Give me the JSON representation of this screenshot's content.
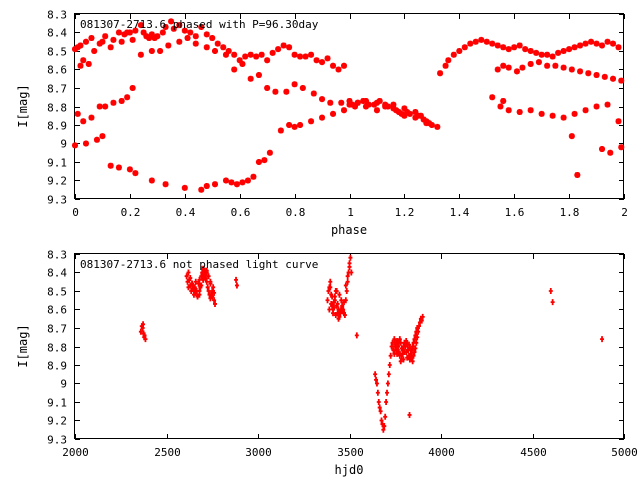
{
  "chart_data": [
    {
      "type": "scatter",
      "title": "081307-2713.6 phased with P=96.30day",
      "xlabel": "phase",
      "ylabel": "I[mag]",
      "xlim": [
        0,
        2
      ],
      "ylim": [
        8.3,
        9.3
      ],
      "y_inverted": true,
      "xticks": [
        "0",
        "0.2",
        "0.4",
        "0.6",
        "0.8",
        "1",
        "1.2",
        "1.4",
        "1.6",
        "1.8",
        "2"
      ],
      "yticks": [
        "8.3",
        "8.4",
        "8.5",
        "8.6",
        "8.7",
        "8.8",
        "8.9",
        "9",
        "9.1",
        "9.2",
        "9.3"
      ],
      "marker_color": "#ff0000",
      "grid": false,
      "series": [
        {
          "x": [
            0.0,
            0.01,
            0.02,
            0.02,
            0.03,
            0.04,
            0.05,
            0.06,
            0.07,
            0.09,
            0.1,
            0.11,
            0.13,
            0.14,
            0.16,
            0.17,
            0.18,
            0.19,
            0.2,
            0.21,
            0.22,
            0.24,
            0.25,
            0.26,
            0.27,
            0.28,
            0.29,
            0.3,
            0.32,
            0.33,
            0.35,
            0.36,
            0.38,
            0.4,
            0.42,
            0.44,
            0.46,
            0.48,
            0.5,
            0.52,
            0.54,
            0.56,
            0.58,
            0.6,
            0.62,
            0.64,
            0.66,
            0.68,
            0.7,
            0.72,
            0.74,
            0.76,
            0.78,
            0.8,
            0.82,
            0.84,
            0.86,
            0.88,
            0.9,
            0.92,
            0.94,
            0.96,
            0.98,
            0.01,
            0.03,
            0.06,
            0.09,
            0.11,
            0.14,
            0.17,
            0.19,
            0.21,
            0.24,
            0.28,
            0.31,
            0.34,
            0.38,
            0.41,
            0.44,
            0.48,
            0.51,
            0.55,
            0.58,
            0.61,
            0.64,
            0.67,
            0.7,
            0.73,
            0.77,
            0.8,
            0.83,
            0.87,
            0.9,
            0.93,
            0.97,
            1.0,
            1.03,
            1.06,
            1.1,
            1.13,
            1.16,
            1.2,
            1.24,
            1.28,
            0.0,
            0.04,
            0.08,
            0.1,
            0.13,
            0.16,
            0.2,
            0.22,
            0.28,
            0.33,
            0.4,
            0.46,
            0.48,
            0.51,
            0.55,
            0.57,
            0.59,
            0.61,
            0.63,
            0.65,
            0.67,
            0.69,
            0.71,
            0.75,
            0.78,
            0.8,
            0.82,
            0.86,
            0.9,
            0.94,
            0.98,
            1.0,
            1.01,
            1.02,
            1.03,
            1.05,
            1.06,
            1.07,
            1.09,
            1.1,
            1.11,
            1.13,
            1.14,
            1.16,
            1.17,
            1.18,
            1.19,
            1.2,
            1.21,
            1.22,
            1.24,
            1.25,
            1.26,
            1.27,
            1.28,
            1.29,
            1.3,
            1.32,
            1.33,
            1.35,
            1.36,
            1.38,
            1.4,
            1.42,
            1.44,
            1.46,
            1.48,
            1.5,
            1.52,
            1.54,
            1.56,
            1.58,
            1.6,
            1.62,
            1.64,
            1.66,
            1.68,
            1.7,
            1.72,
            1.74,
            1.76,
            1.78,
            1.8,
            1.82,
            1.84,
            1.86,
            1.88,
            1.9,
            1.92,
            1.94,
            1.96,
            1.98,
            1.54,
            1.56,
            1.58,
            1.61,
            1.63,
            1.66,
            1.69,
            1.72,
            1.75,
            1.78,
            1.81,
            1.84,
            1.87,
            1.9,
            1.93,
            1.96,
            1.99,
            1.55,
            1.58,
            1.62,
            1.66,
            1.7,
            1.74,
            1.78,
            1.82,
            1.86,
            1.9,
            1.94,
            1.98,
            1.81,
            1.83,
            1.92,
            1.95,
            1.99,
            1.52,
            1.56
          ],
          "y": [
            8.49,
            8.48,
            8.58,
            8.47,
            8.55,
            8.45,
            8.57,
            8.43,
            8.5,
            8.46,
            8.45,
            8.42,
            8.48,
            8.44,
            8.4,
            8.45,
            8.41,
            8.4,
            8.4,
            8.44,
            8.39,
            8.36,
            8.4,
            8.42,
            8.43,
            8.41,
            8.43,
            8.42,
            8.4,
            8.37,
            8.34,
            8.38,
            8.36,
            8.39,
            8.4,
            8.42,
            8.37,
            8.41,
            8.43,
            8.46,
            8.48,
            8.5,
            8.52,
            8.55,
            8.53,
            8.52,
            8.53,
            8.52,
            8.55,
            8.51,
            8.49,
            8.47,
            8.48,
            8.52,
            8.53,
            8.53,
            8.52,
            8.55,
            8.56,
            8.54,
            8.58,
            8.6,
            8.58,
            8.84,
            8.88,
            8.86,
            8.8,
            8.8,
            8.78,
            8.77,
            8.75,
            8.7,
            8.52,
            8.5,
            8.5,
            8.47,
            8.45,
            8.43,
            8.46,
            8.48,
            8.5,
            8.52,
            8.6,
            8.57,
            8.65,
            8.63,
            8.7,
            8.72,
            8.72,
            8.68,
            8.7,
            8.73,
            8.76,
            8.78,
            8.78,
            8.77,
            8.78,
            8.8,
            8.82,
            8.8,
            8.79,
            8.81,
            8.83,
            8.89,
            9.01,
            9.0,
            8.98,
            8.96,
            9.12,
            9.13,
            9.14,
            9.16,
            9.2,
            9.22,
            9.24,
            9.25,
            9.23,
            9.22,
            9.2,
            9.21,
            9.22,
            9.21,
            9.2,
            9.18,
            9.1,
            9.09,
            9.05,
            8.93,
            8.9,
            8.91,
            8.9,
            8.88,
            8.86,
            8.84,
            8.82,
            8.79,
            8.79,
            8.8,
            8.78,
            8.77,
            8.77,
            8.79,
            8.79,
            8.78,
            8.77,
            8.79,
            8.8,
            8.81,
            8.82,
            8.83,
            8.84,
            8.85,
            8.83,
            8.84,
            8.86,
            8.85,
            8.85,
            8.87,
            8.88,
            8.89,
            8.9,
            8.91,
            8.62,
            8.58,
            8.55,
            8.52,
            8.5,
            8.48,
            8.46,
            8.45,
            8.44,
            8.45,
            8.46,
            8.47,
            8.48,
            8.49,
            8.48,
            8.47,
            8.49,
            8.5,
            8.51,
            8.52,
            8.52,
            8.53,
            8.51,
            8.5,
            8.49,
            8.48,
            8.47,
            8.46,
            8.45,
            8.46,
            8.47,
            8.45,
            8.46,
            8.48,
            8.6,
            8.58,
            8.59,
            8.61,
            8.59,
            8.57,
            8.56,
            8.58,
            8.58,
            8.59,
            8.6,
            8.61,
            8.62,
            8.63,
            8.64,
            8.65,
            8.66,
            8.8,
            8.82,
            8.83,
            8.82,
            8.84,
            8.85,
            8.86,
            8.84,
            8.82,
            8.8,
            8.79,
            8.88,
            8.96,
            9.17,
            9.03,
            9.05,
            9.02,
            8.75,
            8.77
          ]
        }
      ]
    },
    {
      "type": "scatter",
      "title": "081307-2713.6 not phased light curve",
      "xlabel": "hjd0",
      "ylabel": "I[mag]",
      "xlim": [
        2000,
        5000
      ],
      "ylim": [
        8.3,
        9.3
      ],
      "y_inverted": true,
      "xticks": [
        "2000",
        "2500",
        "3000",
        "3500",
        "4000",
        "4500",
        "5000"
      ],
      "yticks": [
        "8.3",
        "8.4",
        "8.5",
        "8.6",
        "8.7",
        "8.8",
        "8.9",
        "9",
        "9.1",
        "9.2",
        "9.3"
      ],
      "marker_color": "#ff0000",
      "grid": false,
      "series": [
        {
          "x": [
            2360,
            2365,
            2370,
            2375,
            2380,
            2385,
            2372,
            2378,
            2610,
            2615,
            2620,
            2625,
            2630,
            2635,
            2640,
            2645,
            2650,
            2655,
            2660,
            2665,
            2670,
            2675,
            2680,
            2685,
            2690,
            2695,
            2700,
            2705,
            2710,
            2715,
            2720,
            2725,
            2730,
            2735,
            2740,
            2745,
            2750,
            2755,
            2620,
            2630,
            2640,
            2650,
            2660,
            2670,
            2680,
            2690,
            2700,
            2710,
            2720,
            2730,
            2740,
            2750,
            2760,
            2765,
            2640,
            2660,
            2680,
            2700,
            2720,
            2740,
            2760,
            2880,
            2885,
            3380,
            3385,
            3390,
            3395,
            3400,
            3405,
            3410,
            3415,
            3420,
            3425,
            3430,
            3435,
            3440,
            3445,
            3450,
            3455,
            3460,
            3465,
            3470,
            3475,
            3480,
            3485,
            3490,
            3495,
            3500,
            3505,
            3510,
            3390,
            3400,
            3410,
            3420,
            3430,
            3440,
            3450,
            3460,
            3470,
            3480,
            3490,
            3500,
            3395,
            3405,
            3415,
            3425,
            3435,
            3445,
            3455,
            3465,
            3540,
            3640,
            3645,
            3650,
            3655,
            3660,
            3665,
            3670,
            3675,
            3680,
            3685,
            3690,
            3695,
            3700,
            3705,
            3710,
            3715,
            3720,
            3725,
            3730,
            3735,
            3740,
            3745,
            3750,
            3755,
            3760,
            3765,
            3770,
            3775,
            3780,
            3785,
            3790,
            3795,
            3800,
            3805,
            3810,
            3815,
            3820,
            3825,
            3830,
            3835,
            3840,
            3845,
            3850,
            3855,
            3860,
            3865,
            3870,
            3875,
            3880,
            3885,
            3890,
            3895,
            3900,
            3745,
            3750,
            3755,
            3760,
            3765,
            3770,
            3775,
            3780,
            3785,
            3790,
            3795,
            3800,
            3805,
            3810,
            3815,
            3820,
            3825,
            3830,
            3835,
            3840,
            3845,
            3850,
            3855,
            3860,
            3865,
            3870,
            3828,
            4600,
            4610,
            4880
          ],
          "y": [
            8.72,
            8.69,
            8.7,
            8.73,
            8.74,
            8.76,
            8.68,
            8.75,
            8.42,
            8.45,
            8.48,
            8.44,
            8.47,
            8.5,
            8.46,
            8.49,
            8.52,
            8.48,
            8.45,
            8.5,
            8.53,
            8.46,
            8.44,
            8.48,
            8.42,
            8.4,
            8.38,
            8.41,
            8.39,
            8.43,
            8.45,
            8.48,
            8.5,
            8.52,
            8.54,
            8.52,
            8.5,
            8.48,
            8.4,
            8.43,
            8.46,
            8.49,
            8.51,
            8.53,
            8.5,
            8.47,
            8.44,
            8.41,
            8.39,
            8.42,
            8.45,
            8.53,
            8.55,
            8.57,
            8.47,
            8.5,
            8.52,
            8.43,
            8.4,
            8.46,
            8.51,
            8.44,
            8.47,
            8.55,
            8.5,
            8.48,
            8.45,
            8.52,
            8.58,
            8.6,
            8.56,
            8.53,
            8.5,
            8.58,
            8.62,
            8.6,
            8.64,
            8.62,
            8.6,
            8.58,
            8.6,
            8.62,
            8.63,
            8.55,
            8.5,
            8.45,
            8.4,
            8.35,
            8.32,
            8.4,
            8.6,
            8.57,
            8.62,
            8.55,
            8.5,
            8.65,
            8.61,
            8.59,
            8.56,
            8.47,
            8.42,
            8.37,
            8.48,
            8.53,
            8.59,
            8.63,
            8.57,
            8.52,
            8.55,
            8.61,
            8.74,
            8.95,
            8.98,
            9.0,
            9.05,
            9.1,
            9.13,
            9.15,
            9.2,
            9.22,
            9.25,
            9.23,
            9.18,
            9.1,
            9.05,
            9.0,
            8.95,
            8.9,
            8.85,
            8.8,
            8.78,
            8.82,
            8.84,
            8.8,
            8.78,
            8.77,
            8.8,
            8.83,
            8.85,
            8.88,
            8.85,
            8.82,
            8.8,
            8.78,
            8.8,
            8.83,
            8.86,
            8.82,
            8.79,
            8.81,
            8.84,
            8.86,
            8.88,
            8.85,
            8.83,
            8.81,
            8.78,
            8.75,
            8.72,
            8.69,
            8.67,
            8.65,
            8.66,
            8.64,
            8.76,
            8.79,
            8.82,
            8.84,
            8.8,
            8.78,
            8.76,
            8.78,
            8.81,
            8.84,
            8.87,
            8.83,
            8.8,
            8.77,
            8.79,
            8.82,
            8.85,
            8.87,
            8.85,
            8.82,
            8.8,
            8.78,
            8.76,
            8.74,
            8.72,
            8.7,
            9.17,
            8.5,
            8.56,
            8.76
          ]
        }
      ]
    }
  ]
}
